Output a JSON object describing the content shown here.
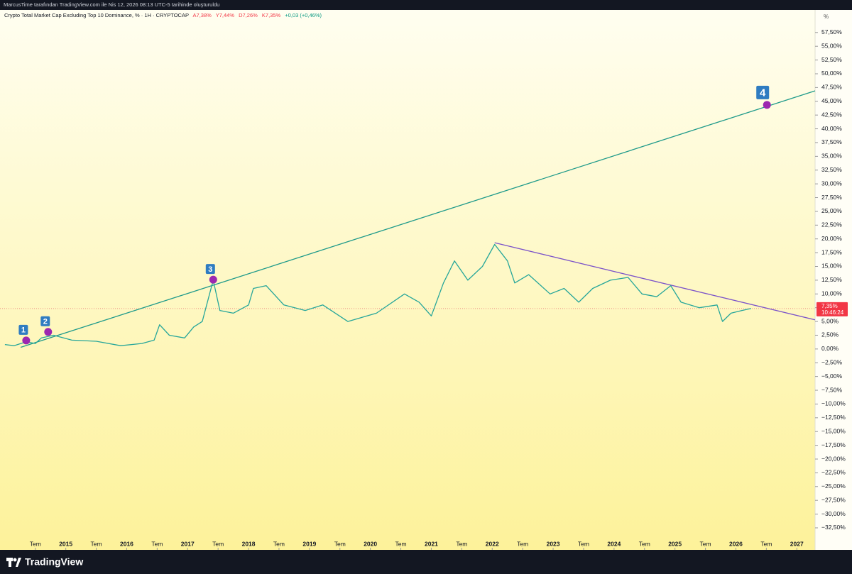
{
  "header": {
    "credit": "MarcusTime tarafından TradingView.com ile Nis 12, 2026 08:13 UTC-5 tarihinde oluşturuldu",
    "brand": "TradingView"
  },
  "chart_data": {
    "type": "line",
    "title": "Crypto Total Market Cap Excluding Top 10 Dominance, % · 1H · CRYPTOCAP",
    "ohlc": [
      "A7,38%",
      "Y7,44%",
      "D7,26%",
      "K7,35%"
    ],
    "change": "+0,03 (+0,46%)",
    "scale_unit": "%",
    "xlim": [
      2013.92,
      2027.3
    ],
    "ylim": [
      -36.5,
      61.6
    ],
    "grid": false,
    "xticks": [
      {
        "value": 2014.5,
        "label": "Tem"
      },
      2015,
      {
        "value": 2015.5,
        "label": "Tem"
      },
      2016,
      {
        "value": 2016.5,
        "label": "Tem"
      },
      2017,
      {
        "value": 2017.5,
        "label": "Tem"
      },
      2018,
      {
        "value": 2018.5,
        "label": "Tem"
      },
      2019,
      {
        "value": 2019.5,
        "label": "Tem"
      },
      2020,
      {
        "value": 2020.5,
        "label": "Tem"
      },
      2021,
      {
        "value": 2021.5,
        "label": "Tem"
      },
      2022,
      {
        "value": 2022.5,
        "label": "Tem"
      },
      2023,
      {
        "value": 2023.5,
        "label": "Tem"
      },
      2024,
      {
        "value": 2024.5,
        "label": "Tem"
      },
      2025,
      {
        "value": 2025.5,
        "label": "Tem"
      },
      2026,
      {
        "value": 2026.5,
        "label": "Tem"
      },
      2027
    ],
    "yticks": [
      {
        "value": 57.5,
        "label": "57,50%"
      },
      {
        "value": 55,
        "label": "55,00%"
      },
      {
        "value": 52.5,
        "label": "52,50%"
      },
      {
        "value": 50,
        "label": "50,00%"
      },
      {
        "value": 47.5,
        "label": "47,50%"
      },
      {
        "value": 45,
        "label": "45,00%"
      },
      {
        "value": 42.5,
        "label": "42,50%"
      },
      {
        "value": 40,
        "label": "40,00%"
      },
      {
        "value": 37.5,
        "label": "37,50%"
      },
      {
        "value": 35,
        "label": "35,00%"
      },
      {
        "value": 32.5,
        "label": "32,50%"
      },
      {
        "value": 30,
        "label": "30,00%"
      },
      {
        "value": 27.5,
        "label": "27,50%"
      },
      {
        "value": 25,
        "label": "25,00%"
      },
      {
        "value": 22.5,
        "label": "22,50%"
      },
      {
        "value": 20,
        "label": "20,00%"
      },
      {
        "value": 17.5,
        "label": "17,50%"
      },
      {
        "value": 15,
        "label": "15,00%"
      },
      {
        "value": 12.5,
        "label": "12,50%"
      },
      {
        "value": 10,
        "label": "10,00%"
      },
      {
        "value": 7.5,
        "label": "7,50%"
      },
      {
        "value": 5,
        "label": "5,00%"
      },
      {
        "value": 2.5,
        "label": "2,50%"
      },
      {
        "value": 0,
        "label": "0,00%"
      },
      {
        "value": -2.5,
        "label": "−2,50%"
      },
      {
        "value": -5,
        "label": "−5,00%"
      },
      {
        "value": -7.5,
        "label": "−7,50%"
      },
      {
        "value": -10,
        "label": "−10,00%"
      },
      {
        "value": -12.5,
        "label": "−12,50%"
      },
      {
        "value": -15,
        "label": "−15,00%"
      },
      {
        "value": -17.5,
        "label": "−17,50%"
      },
      {
        "value": -20,
        "label": "−20,00%"
      },
      {
        "value": -22.5,
        "label": "−22,50%"
      },
      {
        "value": -25,
        "label": "−25,00%"
      },
      {
        "value": -27.5,
        "label": "−27,50%"
      },
      {
        "value": -30,
        "label": "−30,00%"
      },
      {
        "value": -32.5,
        "label": "−32,50%"
      }
    ],
    "series": [
      {
        "color": "#26a69a",
        "x": [
          2014.0,
          2014.15,
          2014.35,
          2014.5,
          2014.6,
          2014.8,
          2015.1,
          2015.5,
          2015.9,
          2016.25,
          2016.45,
          2016.54,
          2016.7,
          2016.95,
          2017.1,
          2017.24,
          2017.42,
          2017.53,
          2017.75,
          2018.0,
          2018.08,
          2018.29,
          2018.58,
          2018.93,
          2019.22,
          2019.63,
          2020.1,
          2020.56,
          2020.8,
          2021.0,
          2021.2,
          2021.38,
          2021.6,
          2021.84,
          2022.04,
          2022.25,
          2022.37,
          2022.6,
          2022.95,
          2023.18,
          2023.42,
          2023.65,
          2023.94,
          2024.23,
          2024.46,
          2024.7,
          2024.93,
          2025.1,
          2025.4,
          2025.69,
          2025.78,
          2025.92,
          2026.1,
          2026.25
        ],
        "values": [
          0.8,
          0.6,
          1.3,
          1.0,
          2.0,
          2.5,
          1.6,
          1.4,
          0.6,
          1.0,
          1.6,
          4.4,
          2.5,
          2.0,
          4.0,
          5.0,
          12.5,
          7.0,
          6.5,
          8.0,
          11.0,
          11.5,
          8.0,
          7.0,
          8.0,
          5.0,
          6.5,
          10.0,
          8.5,
          6.0,
          12.0,
          16.0,
          12.5,
          15.0,
          19.0,
          16.0,
          12.0,
          13.5,
          10.0,
          11.0,
          8.5,
          11.0,
          12.5,
          13.0,
          10.0,
          9.5,
          11.5,
          8.5,
          7.5,
          8.0,
          5.0,
          6.5,
          7.0,
          7.35
        ]
      }
    ],
    "trendlines": [
      {
        "color": "#1e9a8a",
        "x": [
          2014.26,
          2027.3
        ],
        "y": [
          0.3,
          46.9
        ]
      },
      {
        "color": "#7b52c9",
        "x": [
          2022.04,
          2027.3
        ],
        "y": [
          19.3,
          5.3
        ]
      }
    ],
    "annotations": [
      {
        "label": "1",
        "x": 2014.35,
        "y": 1.55
      },
      {
        "label": "2",
        "x": 2014.71,
        "y": 3.1
      },
      {
        "label": "3",
        "x": 2017.42,
        "y": 12.6
      },
      {
        "label": "4",
        "x": 2026.51,
        "y": 44.35
      }
    ],
    "last_price": {
      "value": 7.35,
      "label": "7,35%",
      "countdown": "10:46:24"
    }
  }
}
